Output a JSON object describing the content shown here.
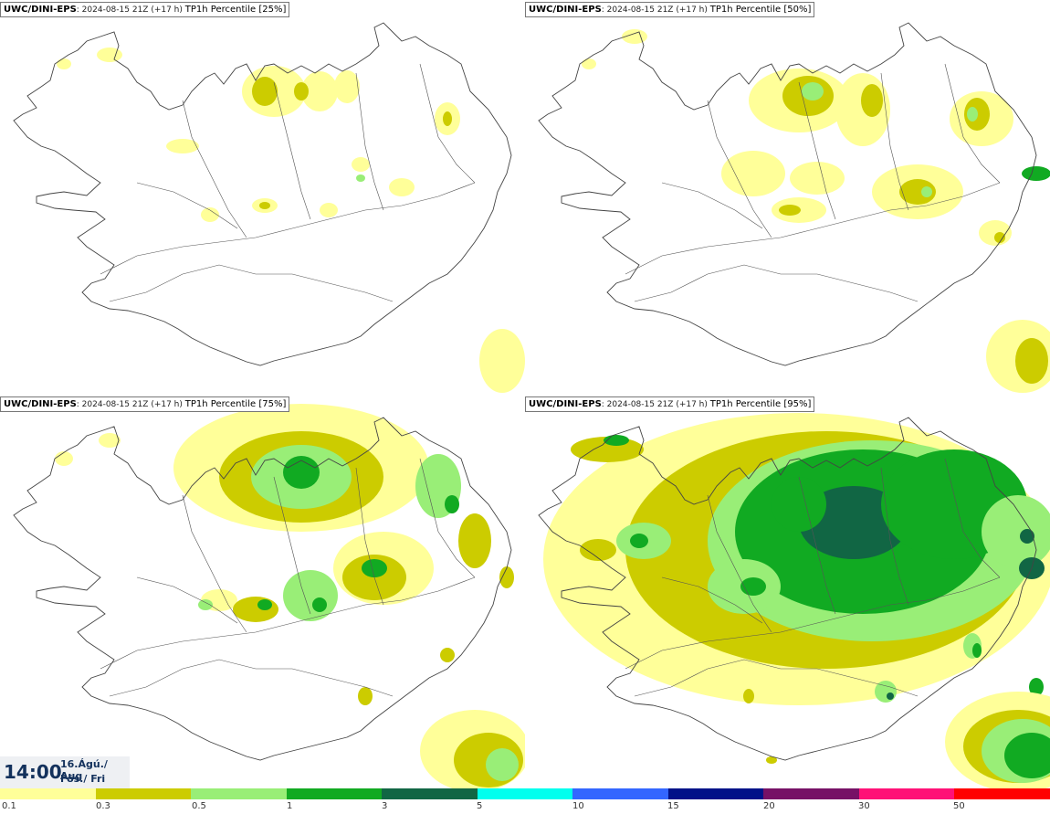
{
  "panels": [
    {
      "source": "UWC/DINI-EPS",
      "run": "2024-08-15 21Z (+17 h)",
      "product": "TP1h Percentile [25%]"
    },
    {
      "source": "UWC/DINI-EPS",
      "run": "2024-08-15 21Z (+17 h)",
      "product": "TP1h Percentile [50%]"
    },
    {
      "source": "UWC/DINI-EPS",
      "run": "2024-08-15 21Z (+17 h)",
      "product": "TP1h Percentile [75%]"
    },
    {
      "source": "UWC/DINI-EPS",
      "run": "2024-08-15 21Z (+17 h)",
      "product": "TP1h Percentile [95%]"
    }
  ],
  "valid_time": {
    "time": "14:00",
    "date_line1": "16.Ágú./ Aug",
    "date_line2": "Fös./ Fri"
  },
  "legend": {
    "colors": [
      "#ffff99",
      "#cccc00",
      "#99ee77",
      "#11aa22",
      "#116644",
      "#00ffee",
      "#3366ff",
      "#001188",
      "#771166",
      "#ff1177",
      "#ff0000"
    ],
    "labels": [
      "0.1",
      "0.3",
      "0.5",
      "1",
      "3",
      "5",
      "10",
      "15",
      "20",
      "30",
      "50"
    ]
  }
}
